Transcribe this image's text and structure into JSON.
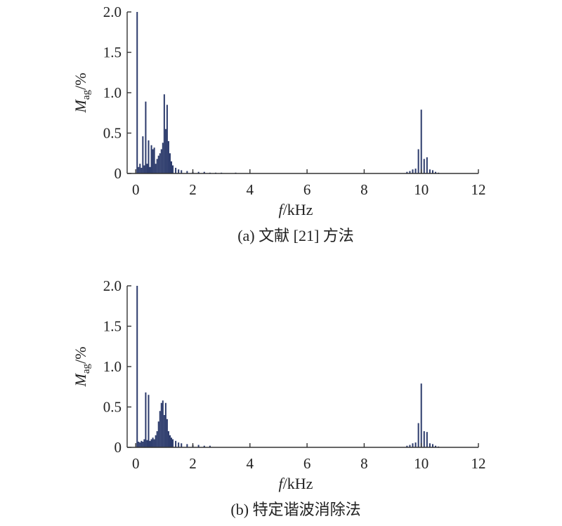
{
  "chart_data": [
    {
      "type": "bar",
      "caption": "(a) 文献 [21] 方法",
      "xlabel_italic": "f",
      "xlabel_rest": "/kHz",
      "ylabel_main": "M",
      "ylabel_sub": "ag",
      "ylabel_unit": "/%",
      "xlim": [
        -0.3,
        12
      ],
      "ylim": [
        0,
        2.0
      ],
      "xticks": [
        "0",
        "2",
        "4",
        "6",
        "8",
        "10",
        "12"
      ],
      "yticks": [
        "0",
        "0.5",
        "1.0",
        "1.5",
        "2.0"
      ],
      "bar_color": "#2b3a6b",
      "x": [
        0.05,
        0.1,
        0.15,
        0.2,
        0.25,
        0.3,
        0.35,
        0.4,
        0.45,
        0.5,
        0.55,
        0.6,
        0.65,
        0.7,
        0.75,
        0.8,
        0.85,
        0.9,
        0.95,
        1.0,
        1.05,
        1.1,
        1.15,
        1.2,
        1.25,
        1.3,
        1.4,
        1.5,
        1.6,
        1.8,
        2.0,
        2.2,
        2.4,
        2.6,
        2.8,
        3.0,
        3.5,
        9.5,
        9.6,
        9.7,
        9.8,
        9.9,
        10.0,
        10.1,
        10.2,
        10.3,
        10.4,
        10.5,
        10.6
      ],
      "values": [
        2.0,
        0.08,
        0.12,
        0.07,
        0.46,
        0.1,
        0.89,
        0.12,
        0.41,
        0.08,
        0.35,
        0.3,
        0.32,
        0.12,
        0.18,
        0.22,
        0.25,
        0.3,
        0.38,
        0.98,
        0.55,
        0.85,
        0.4,
        0.25,
        0.15,
        0.1,
        0.07,
        0.05,
        0.04,
        0.03,
        0.02,
        0.02,
        0.02,
        0.01,
        0.01,
        0.01,
        0.01,
        0.02,
        0.03,
        0.05,
        0.06,
        0.3,
        0.79,
        0.18,
        0.2,
        0.05,
        0.04,
        0.02,
        0.01
      ]
    },
    {
      "type": "bar",
      "caption": "(b) 特定谐波消除法",
      "xlabel_italic": "f",
      "xlabel_rest": "/kHz",
      "ylabel_main": "M",
      "ylabel_sub": "ag",
      "ylabel_unit": "/%",
      "xlim": [
        -0.3,
        12
      ],
      "ylim": [
        0,
        2.0
      ],
      "xticks": [
        "0",
        "2",
        "4",
        "6",
        "8",
        "10",
        "12"
      ],
      "yticks": [
        "0",
        "0.5",
        "1.0",
        "1.5",
        "2.0"
      ],
      "bar_color": "#2b3a6b",
      "x": [
        0.05,
        0.1,
        0.15,
        0.2,
        0.25,
        0.3,
        0.35,
        0.4,
        0.45,
        0.5,
        0.55,
        0.6,
        0.65,
        0.7,
        0.75,
        0.8,
        0.85,
        0.9,
        0.95,
        1.0,
        1.05,
        1.1,
        1.15,
        1.2,
        1.25,
        1.3,
        1.4,
        1.5,
        1.6,
        1.8,
        2.0,
        2.2,
        2.4,
        2.6,
        9.5,
        9.6,
        9.7,
        9.8,
        9.9,
        10.0,
        10.1,
        10.2,
        10.3,
        10.4,
        10.5,
        10.6
      ],
      "values": [
        2.0,
        0.07,
        0.06,
        0.08,
        0.07,
        0.1,
        0.68,
        0.09,
        0.65,
        0.08,
        0.1,
        0.12,
        0.1,
        0.15,
        0.2,
        0.32,
        0.45,
        0.55,
        0.58,
        0.4,
        0.55,
        0.35,
        0.2,
        0.15,
        0.12,
        0.1,
        0.08,
        0.06,
        0.05,
        0.04,
        0.03,
        0.03,
        0.02,
        0.02,
        0.02,
        0.03,
        0.05,
        0.06,
        0.3,
        0.79,
        0.2,
        0.19,
        0.05,
        0.04,
        0.02,
        0.01
      ]
    }
  ]
}
